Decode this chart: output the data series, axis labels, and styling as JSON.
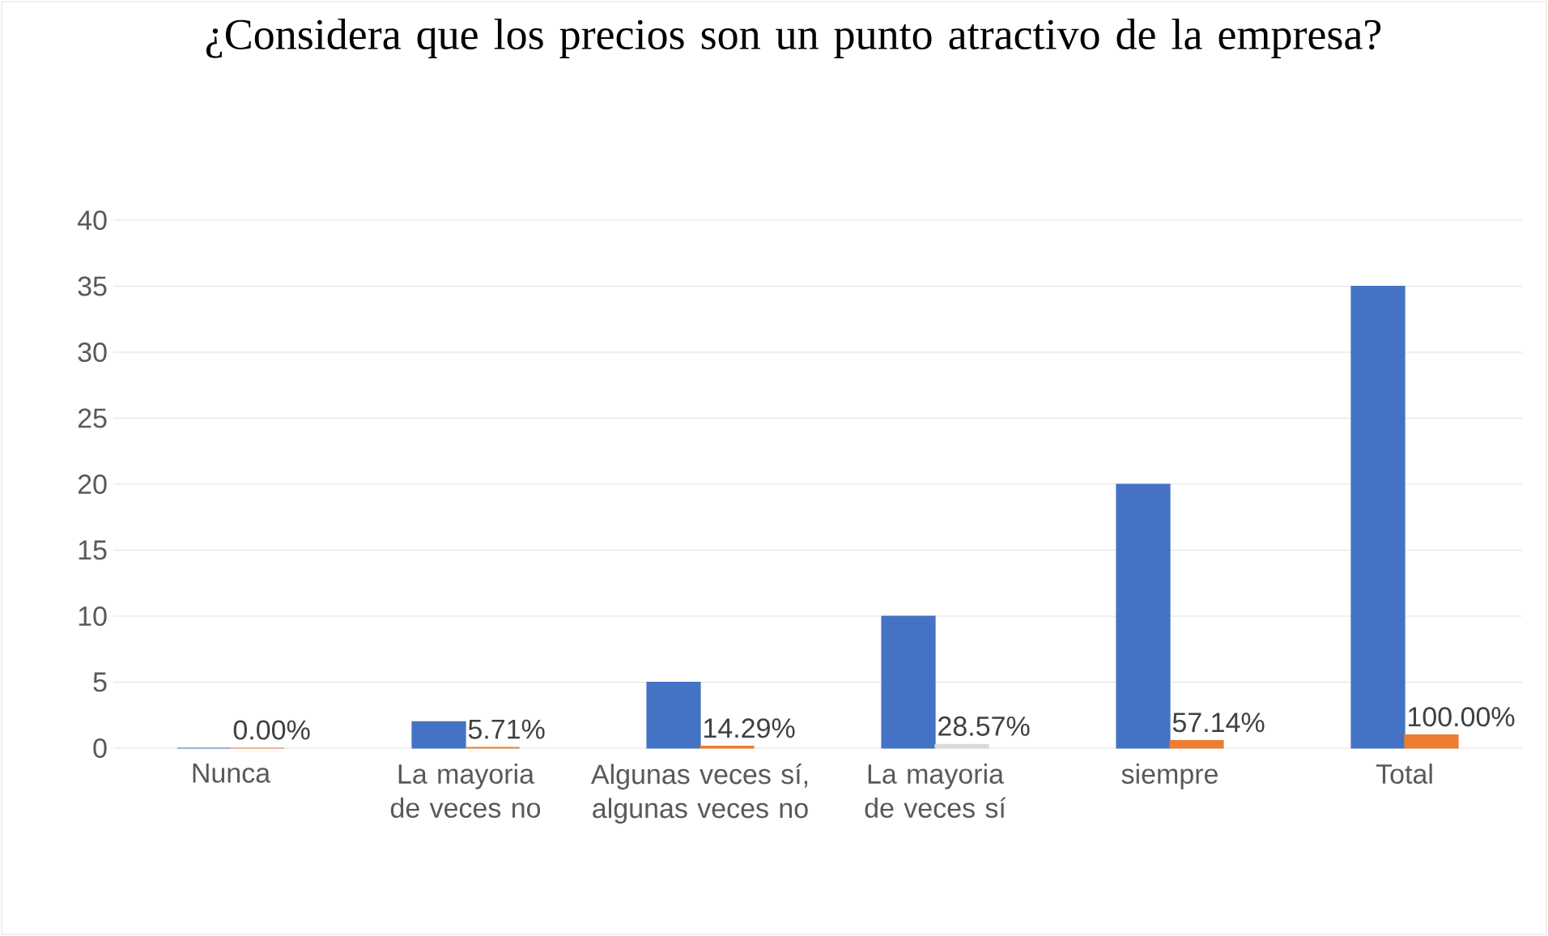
{
  "chart_data": {
    "type": "bar",
    "title": "¿Considera que los precios son un punto atractivo de la empresa?",
    "categories": [
      "Nunca",
      "La mayoria de veces no",
      "Algunas veces sí, algunas veces no",
      "La mayoria de veces sí",
      "siempre",
      "Total"
    ],
    "series": [
      {
        "color": "#4472c4",
        "values": [
          0,
          2,
          5,
          10,
          20,
          35
        ]
      },
      {
        "colors": [
          "#ed7d31",
          "#ed7d31",
          "#ed7d31",
          "#d9d9d9",
          "#ed7d31",
          "#ed7d31"
        ],
        "values": [
          0,
          0.0571,
          0.1429,
          0.2857,
          0.5714,
          1.0
        ],
        "value_labels": [
          "0.00%",
          "5.71%",
          "14.29%",
          "28.57%",
          "57.14%",
          "100.00%"
        ]
      }
    ],
    "ylim": [
      0,
      40
    ],
    "yticks": [
      0,
      5,
      10,
      15,
      20,
      25,
      30,
      35,
      40
    ],
    "grid": "y"
  }
}
